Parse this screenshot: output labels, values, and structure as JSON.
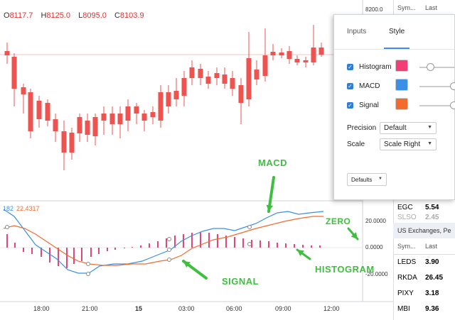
{
  "ohlc": {
    "o_key": "O",
    "o_val": "8117.7",
    "h_key": "H",
    "h_val": "8125.0",
    "l_key": "L",
    "l_val": "8095.0",
    "c_key": "C",
    "c_val": "8103.9"
  },
  "indicator": {
    "label_left": "182",
    "value": "22.4317"
  },
  "price_axis": {
    "top_label": "8200.0"
  },
  "indicator_axis": {
    "label_top": "20.0000",
    "label_zero": "0.0000",
    "label_low": "-20.0000"
  },
  "time_axis": [
    "18:00",
    "21:00",
    "15",
    "03:00",
    "06:00",
    "09:00",
    "12:00"
  ],
  "annotations": {
    "macd": "MACD",
    "zero": "ZERO",
    "histogram": "HISTOGRAM",
    "signal": "SIGNAL"
  },
  "dialog": {
    "tab_inputs": "Inputs",
    "tab_style": "Style",
    "options": [
      {
        "label": "Histogram",
        "color": "#f23d75"
      },
      {
        "label": "MACD",
        "color": "#3b90e5"
      },
      {
        "label": "Signal",
        "color": "#f26b2d"
      }
    ],
    "precision_label": "Precision",
    "precision_value": "Default",
    "scale_label": "Scale",
    "scale_value": "Scale Right",
    "defaults_button": "Defaults"
  },
  "watchlist": {
    "header_sym": "Sym...",
    "header_last": "Last",
    "rows_top": [
      {
        "sym": "EGC",
        "last": "5.54"
      },
      {
        "sym": "SLSO",
        "last": "2.45"
      }
    ],
    "section_title": "US Exchanges, Pe",
    "rows_bottom": [
      {
        "sym": "LEDS",
        "last": "3.90"
      },
      {
        "sym": "RKDA",
        "last": "26.45"
      },
      {
        "sym": "PIXY",
        "last": "3.18"
      },
      {
        "sym": "MBI",
        "last": "9.36"
      }
    ]
  },
  "colors": {
    "up": "#26a69a",
    "down": "#ef5350",
    "macd_line": "#3b90e5",
    "signal_line": "#f26b2d",
    "histogram": "#e0457b",
    "annotation": "#3fbf3f"
  }
}
